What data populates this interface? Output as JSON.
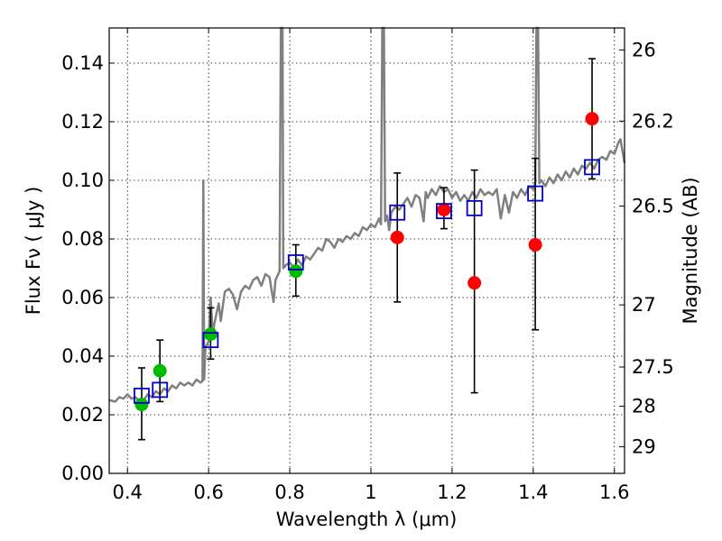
{
  "chart_data": {
    "type": "scatter",
    "title": "",
    "xlabel": "Wavelength  λ (μm)",
    "ylabel": "Flux  Fν ( μJy )",
    "ylabel_right": "Magnitude (AB)",
    "xlim": [
      0.355,
      1.625
    ],
    "ylim": [
      0.0,
      0.152
    ],
    "grid": true,
    "x_ticks": [
      0.4,
      0.6,
      0.8,
      1.0,
      1.2,
      1.4,
      1.6
    ],
    "x_tick_labels": [
      "0.4",
      "0.6",
      "0.8",
      "1",
      "1.2",
      "1.4",
      "1.6"
    ],
    "y_ticks": [
      0.0,
      0.02,
      0.04,
      0.06,
      0.08,
      0.1,
      0.12,
      0.14
    ],
    "y_tick_labels": [
      "0.00",
      "0.02",
      "0.04",
      "0.06",
      "0.08",
      "0.10",
      "0.12",
      "0.14"
    ],
    "right_ticks": [
      {
        "label": "26",
        "flux": 0.1445
      },
      {
        "label": "26.2",
        "flux": 0.1202
      },
      {
        "label": "26.5",
        "flux": 0.0912
      },
      {
        "label": "27",
        "flux": 0.0575
      },
      {
        "label": "27.5",
        "flux": 0.0363
      },
      {
        "label": "28",
        "flux": 0.0229
      },
      {
        "label": "29",
        "flux": 0.0091
      }
    ],
    "model_spectrum": {
      "name": "model SED",
      "color": "#808080",
      "points": [
        [
          0.355,
          0.025
        ],
        [
          0.37,
          0.0245
        ],
        [
          0.38,
          0.026
        ],
        [
          0.39,
          0.0255
        ],
        [
          0.4,
          0.027
        ],
        [
          0.41,
          0.0255
        ],
        [
          0.42,
          0.026
        ],
        [
          0.43,
          0.0245
        ],
        [
          0.44,
          0.025
        ],
        [
          0.45,
          0.027
        ],
        [
          0.46,
          0.026
        ],
        [
          0.47,
          0.028
        ],
        [
          0.48,
          0.027
        ],
        [
          0.49,
          0.029
        ],
        [
          0.5,
          0.028
        ],
        [
          0.51,
          0.03
        ],
        [
          0.52,
          0.029
        ],
        [
          0.53,
          0.031
        ],
        [
          0.54,
          0.03
        ],
        [
          0.55,
          0.031
        ],
        [
          0.56,
          0.03
        ],
        [
          0.57,
          0.032
        ],
        [
          0.58,
          0.031
        ],
        [
          0.585,
          0.0315
        ],
        [
          0.587,
          0.1
        ],
        [
          0.589,
          0.032
        ],
        [
          0.592,
          0.043
        ],
        [
          0.6,
          0.045
        ],
        [
          0.605,
          0.06
        ],
        [
          0.61,
          0.048
        ],
        [
          0.62,
          0.055
        ],
        [
          0.625,
          0.058
        ],
        [
          0.63,
          0.052
        ],
        [
          0.64,
          0.062
        ],
        [
          0.65,
          0.063
        ],
        [
          0.66,
          0.061
        ],
        [
          0.67,
          0.056
        ],
        [
          0.68,
          0.062
        ],
        [
          0.69,
          0.064
        ],
        [
          0.7,
          0.063
        ],
        [
          0.71,
          0.066
        ],
        [
          0.72,
          0.067
        ],
        [
          0.73,
          0.064
        ],
        [
          0.74,
          0.068
        ],
        [
          0.75,
          0.067
        ],
        [
          0.76,
          0.0585
        ],
        [
          0.765,
          0.066
        ],
        [
          0.775,
          0.069
        ],
        [
          0.778,
          0.152
        ],
        [
          0.782,
          0.152
        ],
        [
          0.784,
          0.07
        ],
        [
          0.79,
          0.071
        ],
        [
          0.8,
          0.072
        ],
        [
          0.81,
          0.07
        ],
        [
          0.82,
          0.073
        ],
        [
          0.83,
          0.071
        ],
        [
          0.84,
          0.074
        ],
        [
          0.85,
          0.073
        ],
        [
          0.86,
          0.075
        ],
        [
          0.87,
          0.077
        ],
        [
          0.88,
          0.076
        ],
        [
          0.89,
          0.08
        ],
        [
          0.9,
          0.079
        ],
        [
          0.91,
          0.077
        ],
        [
          0.92,
          0.08
        ],
        [
          0.93,
          0.079
        ],
        [
          0.94,
          0.081
        ],
        [
          0.95,
          0.08
        ],
        [
          0.96,
          0.082
        ],
        [
          0.97,
          0.081
        ],
        [
          0.98,
          0.084
        ],
        [
          0.99,
          0.083
        ],
        [
          1.0,
          0.085
        ],
        [
          1.01,
          0.084
        ],
        [
          1.02,
          0.087
        ],
        [
          1.025,
          0.085
        ],
        [
          1.028,
          0.152
        ],
        [
          1.032,
          0.152
        ],
        [
          1.035,
          0.086
        ],
        [
          1.04,
          0.088
        ],
        [
          1.045,
          0.083
        ],
        [
          1.05,
          0.089
        ],
        [
          1.06,
          0.091
        ],
        [
          1.07,
          0.09
        ],
        [
          1.08,
          0.092
        ],
        [
          1.09,
          0.094
        ],
        [
          1.1,
          0.091
        ],
        [
          1.11,
          0.095
        ],
        [
          1.12,
          0.094
        ],
        [
          1.13,
          0.086
        ],
        [
          1.135,
          0.096
        ],
        [
          1.14,
          0.094
        ],
        [
          1.15,
          0.097
        ],
        [
          1.16,
          0.095
        ],
        [
          1.17,
          0.098
        ],
        [
          1.18,
          0.096
        ],
        [
          1.19,
          0.097
        ],
        [
          1.2,
          0.094
        ],
        [
          1.21,
          0.096
        ],
        [
          1.22,
          0.093
        ],
        [
          1.23,
          0.095
        ],
        [
          1.24,
          0.093
        ],
        [
          1.25,
          0.096
        ],
        [
          1.26,
          0.094
        ],
        [
          1.27,
          0.097
        ],
        [
          1.28,
          0.095
        ],
        [
          1.29,
          0.096
        ],
        [
          1.3,
          0.095
        ],
        [
          1.31,
          0.097
        ],
        [
          1.32,
          0.087
        ],
        [
          1.33,
          0.095
        ],
        [
          1.34,
          0.089
        ],
        [
          1.35,
          0.096
        ],
        [
          1.36,
          0.094
        ],
        [
          1.37,
          0.097
        ],
        [
          1.38,
          0.095
        ],
        [
          1.39,
          0.098
        ],
        [
          1.4,
          0.097
        ],
        [
          1.405,
          0.099
        ],
        [
          1.408,
          0.152
        ],
        [
          1.412,
          0.152
        ],
        [
          1.415,
          0.099
        ],
        [
          1.42,
          0.1
        ],
        [
          1.43,
          0.098
        ],
        [
          1.44,
          0.101
        ],
        [
          1.45,
          0.099
        ],
        [
          1.46,
          0.102
        ],
        [
          1.47,
          0.1
        ],
        [
          1.48,
          0.103
        ],
        [
          1.49,
          0.101
        ],
        [
          1.5,
          0.104
        ],
        [
          1.51,
          0.102
        ],
        [
          1.52,
          0.105
        ],
        [
          1.53,
          0.104
        ],
        [
          1.54,
          0.106
        ],
        [
          1.55,
          0.104
        ],
        [
          1.56,
          0.107
        ],
        [
          1.57,
          0.108
        ],
        [
          1.58,
          0.107
        ],
        [
          1.59,
          0.11
        ],
        [
          1.6,
          0.109
        ],
        [
          1.61,
          0.113
        ],
        [
          1.615,
          0.114
        ],
        [
          1.625,
          0.106
        ]
      ]
    },
    "series": [
      {
        "name": "green photometry",
        "color": "#00bb00",
        "points": [
          {
            "x": 0.435,
            "y": 0.0235,
            "err_low": 0.0115,
            "err_high": 0.036
          },
          {
            "x": 0.48,
            "y": 0.035,
            "err_low": 0.0245,
            "err_high": 0.0455
          },
          {
            "x": 0.605,
            "y": 0.0475,
            "err_low": 0.039,
            "err_high": 0.0565
          },
          {
            "x": 0.815,
            "y": 0.069,
            "err_low": 0.0605,
            "err_high": 0.078
          }
        ]
      },
      {
        "name": "red photometry",
        "color": "#ff0000",
        "points": [
          {
            "x": 1.065,
            "y": 0.0805,
            "err_low": 0.0585,
            "err_high": 0.1025
          },
          {
            "x": 1.18,
            "y": 0.09,
            "err_low": 0.0835,
            "err_high": 0.0975
          },
          {
            "x": 1.255,
            "y": 0.065,
            "err_low": 0.0275,
            "err_high": 0.1035
          },
          {
            "x": 1.405,
            "y": 0.078,
            "err_low": 0.049,
            "err_high": 0.1075
          },
          {
            "x": 1.545,
            "y": 0.121,
            "err_low": 0.1005,
            "err_high": 0.1415
          }
        ]
      },
      {
        "name": "model synthetic photometry",
        "color": "#0000cc",
        "marker": "open-square",
        "points": [
          {
            "x": 0.435,
            "y": 0.0265
          },
          {
            "x": 0.48,
            "y": 0.0285
          },
          {
            "x": 0.605,
            "y": 0.0455
          },
          {
            "x": 0.815,
            "y": 0.072
          },
          {
            "x": 1.065,
            "y": 0.089
          },
          {
            "x": 1.18,
            "y": 0.0895
          },
          {
            "x": 1.255,
            "y": 0.0905
          },
          {
            "x": 1.405,
            "y": 0.0955
          },
          {
            "x": 1.545,
            "y": 0.1045
          }
        ]
      }
    ]
  }
}
